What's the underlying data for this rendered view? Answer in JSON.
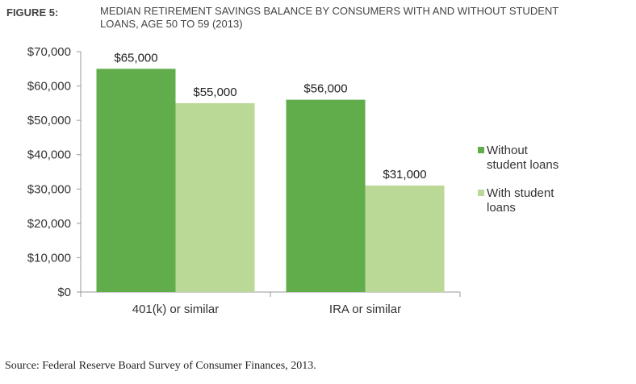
{
  "figure_label": "FIGURE 5:",
  "title_lines": [
    "MEDIAN RETIREMENT SAVINGS BALANCE BY CONSUMERS WITH AND WITHOUT STUDENT",
    "LOANS, AGE 50 TO 59 (2013)"
  ],
  "source": "Source: Federal Reserve Board Survey of Consumer Finances, 2013.",
  "colors": {
    "without": "#62ad4b",
    "with": "#bad896",
    "axis": "#999999",
    "text": "#333333"
  },
  "chart_data": {
    "type": "bar",
    "title": "MEDIAN RETIREMENT SAVINGS BALANCE BY CONSUMERS WITH AND WITHOUT STUDENT LOANS, AGE 50 TO 59 (2013)",
    "categories": [
      "401(k) or similar",
      "IRA or similar"
    ],
    "series": [
      {
        "name": "Without student loans",
        "legend_lines": [
          "Without",
          "student loans"
        ],
        "values": [
          65000,
          56000
        ],
        "labels": [
          "$65,000",
          "$56,000"
        ]
      },
      {
        "name": "With student loans",
        "legend_lines": [
          "With student",
          "loans"
        ],
        "values": [
          55000,
          31000
        ],
        "labels": [
          "$55,000",
          "$31,000"
        ]
      }
    ],
    "ylim": [
      0,
      70000
    ],
    "yticks": [
      0,
      10000,
      20000,
      30000,
      40000,
      50000,
      60000,
      70000
    ],
    "ytick_labels": [
      "$0",
      "$10,000",
      "$20,000",
      "$30,000",
      "$40,000",
      "$50,000",
      "$60,000",
      "$70,000"
    ],
    "xlabel": "",
    "ylabel": "",
    "legend_position": "right",
    "grid": false
  }
}
